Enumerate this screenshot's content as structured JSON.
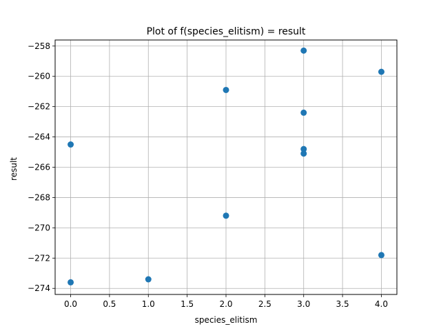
{
  "chart_data": {
    "type": "scatter",
    "title": "Plot of f(species_elitism) = result",
    "xlabel": "species_elitism",
    "ylabel": "result",
    "xlim": [
      -0.2,
      4.2
    ],
    "ylim": [
      -274.4,
      -257.6
    ],
    "x_ticks": [
      0.0,
      0.5,
      1.0,
      1.5,
      2.0,
      2.5,
      3.0,
      3.5,
      4.0
    ],
    "x_tick_labels": [
      "0.0",
      "0.5",
      "1.0",
      "1.5",
      "2.0",
      "2.5",
      "3.0",
      "3.5",
      "4.0"
    ],
    "y_ticks": [
      -258,
      -260,
      -262,
      -264,
      -266,
      -268,
      -270,
      -272,
      -274
    ],
    "y_tick_labels": [
      "−258",
      "−260",
      "−262",
      "−264",
      "−266",
      "−268",
      "−270",
      "−272",
      "−274"
    ],
    "grid": true,
    "marker_color": "#1f77b4",
    "points": [
      {
        "x": 0,
        "y": -264.5
      },
      {
        "x": 0,
        "y": -273.6
      },
      {
        "x": 1,
        "y": -273.4
      },
      {
        "x": 2,
        "y": -260.9
      },
      {
        "x": 2,
        "y": -269.2
      },
      {
        "x": 3,
        "y": -258.3
      },
      {
        "x": 3,
        "y": -262.4
      },
      {
        "x": 3,
        "y": -264.8
      },
      {
        "x": 3,
        "y": -265.1
      },
      {
        "x": 4,
        "y": -259.7
      },
      {
        "x": 4,
        "y": -271.8
      }
    ]
  }
}
